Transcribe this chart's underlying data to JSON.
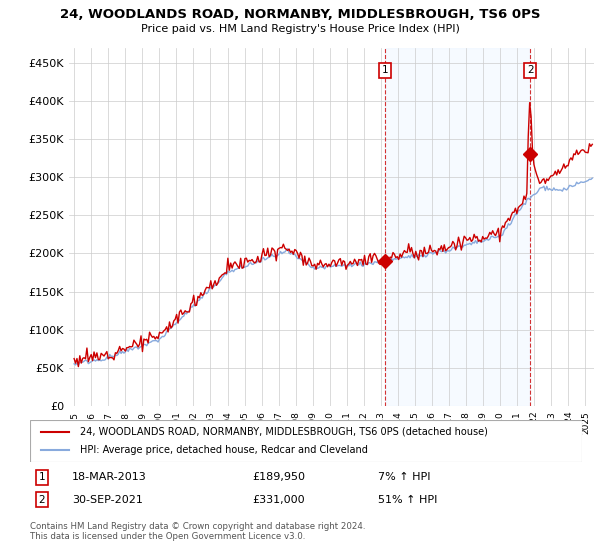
{
  "title": "24, WOODLANDS ROAD, NORMANBY, MIDDLESBROUGH, TS6 0PS",
  "subtitle": "Price paid vs. HM Land Registry's House Price Index (HPI)",
  "ytick_values": [
    0,
    50000,
    100000,
    150000,
    200000,
    250000,
    300000,
    350000,
    400000,
    450000
  ],
  "ylim": [
    0,
    470000
  ],
  "xlim_start": 1994.7,
  "xlim_end": 2025.5,
  "hpi_color": "#88aadd",
  "price_color": "#cc0000",
  "shade_color": "#ddeeff",
  "marker1_x": 2013.22,
  "marker1_y": 189950,
  "marker2_x": 2021.75,
  "marker2_y": 331000,
  "legend_line1": "24, WOODLANDS ROAD, NORMANBY, MIDDLESBROUGH, TS6 0PS (detached house)",
  "legend_line2": "HPI: Average price, detached house, Redcar and Cleveland",
  "footer": "Contains HM Land Registry data © Crown copyright and database right 2024.\nThis data is licensed under the Open Government Licence v3.0.",
  "background_color": "#ffffff",
  "grid_color": "#cccccc",
  "vline1_x": 2013.22,
  "vline2_x": 2021.75
}
